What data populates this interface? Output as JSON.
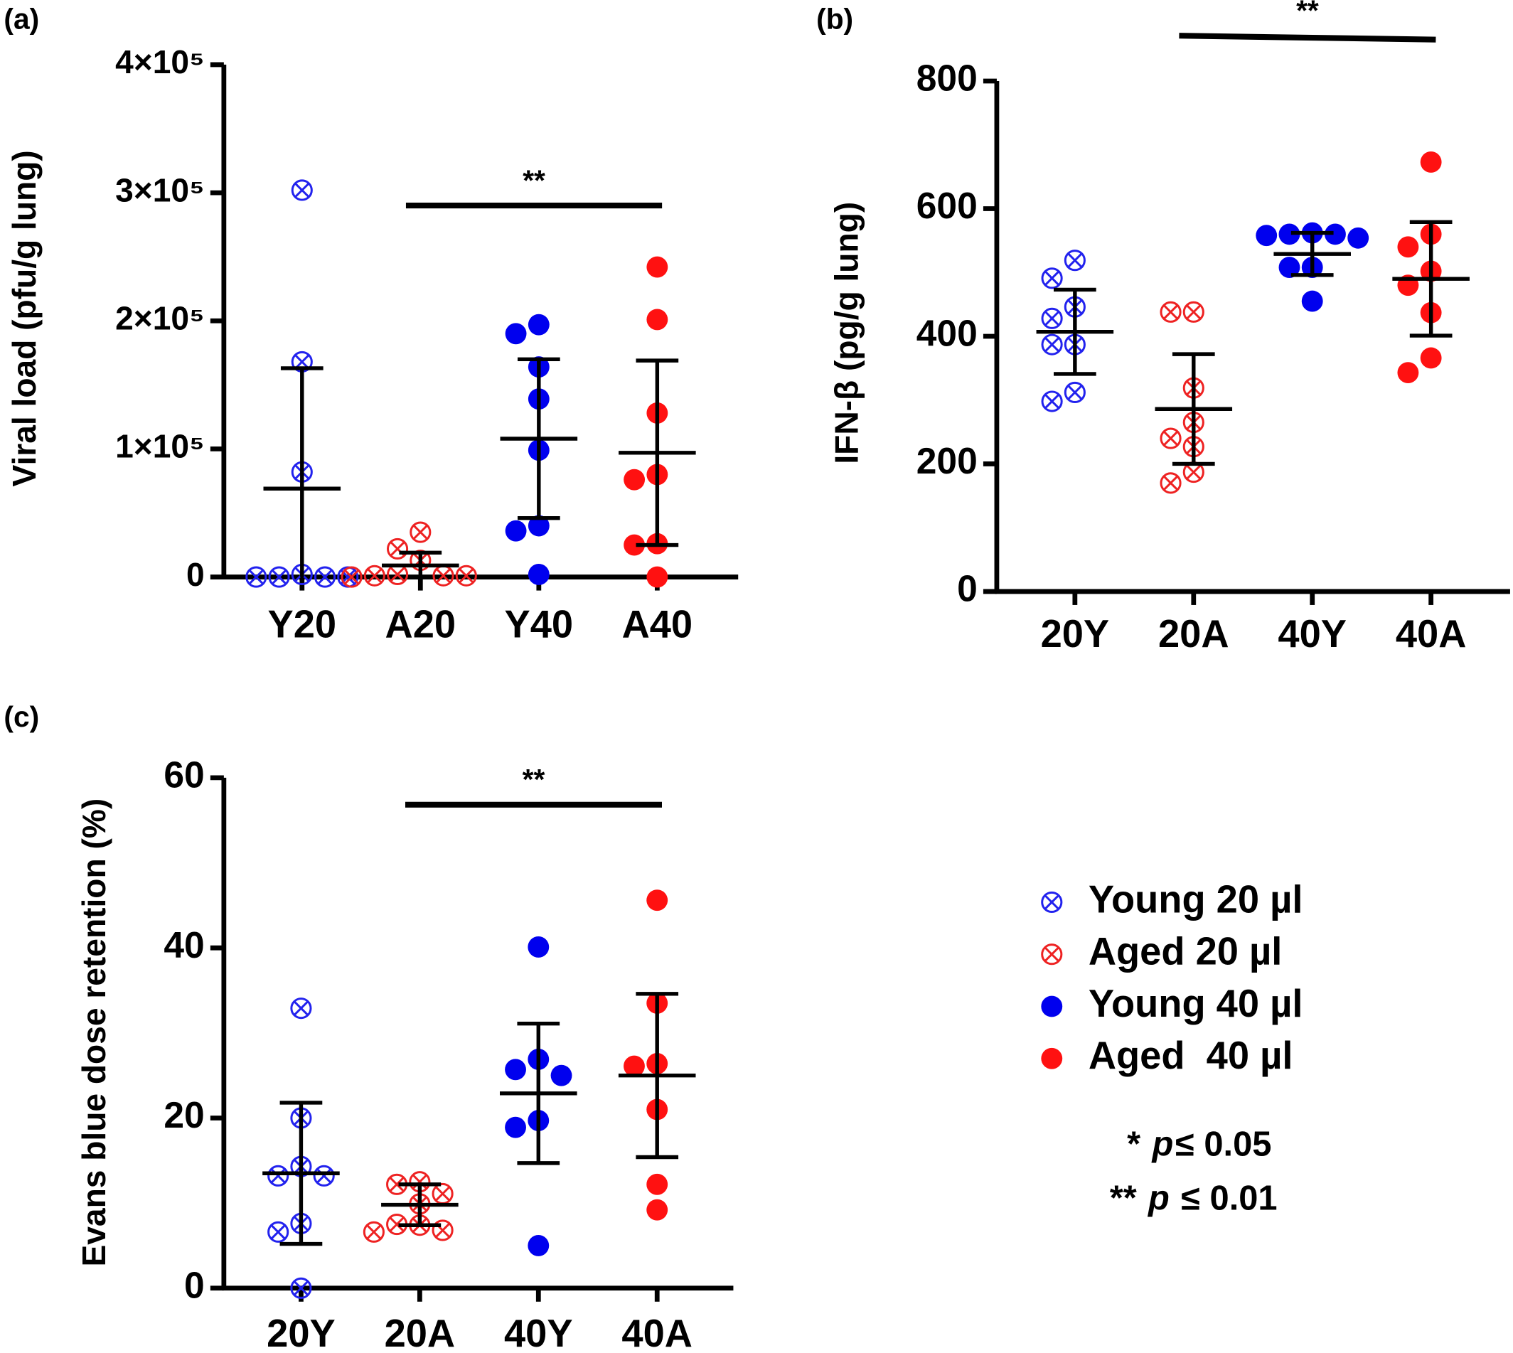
{
  "chart_data": [
    {
      "type": "dot",
      "panel_label": "(a)",
      "ylabel": "Viral load (pfu/g lung)",
      "categories": [
        "Y20",
        "A20",
        "Y40",
        "A40"
      ],
      "ylim": [
        0,
        400000
      ],
      "yticks": [
        0,
        {
          "value": 100000,
          "label": "1×10⁵"
        },
        {
          "value": 200000,
          "label": "2×10⁵"
        },
        {
          "value": 300000,
          "label": "3×10⁵"
        },
        {
          "value": 400000,
          "label": "4×10⁵"
        }
      ],
      "groups": [
        {
          "color": "#2222ee",
          "marker": "cross",
          "points": [
            302000,
            168000,
            82000,
            2000,
            0,
            0,
            0,
            0
          ],
          "mean": 69000,
          "sd": 94000
        },
        {
          "color": "#ee2222",
          "marker": "cross",
          "points": [
            35000,
            22000,
            13000,
            2000,
            1000,
            1000,
            1000,
            0
          ],
          "mean": 9000,
          "sd": 10000
        },
        {
          "color": "#0000ee",
          "marker": "filled",
          "points": [
            197000,
            190000,
            164000,
            139000,
            99000,
            40000,
            36000,
            2000
          ],
          "mean": 108000,
          "sd": 62000
        },
        {
          "color": "#ff1111",
          "marker": "filled",
          "points": [
            242000,
            201000,
            128000,
            80000,
            76000,
            26000,
            25000,
            0
          ],
          "mean": 97000,
          "sd": 72000
        }
      ],
      "significance": {
        "label": "**",
        "between": [
          "A20",
          "A40"
        ]
      }
    },
    {
      "type": "dot",
      "panel_label": "(b)",
      "ylabel": "IFN-β (pg/g lung)",
      "categories": [
        "20Y",
        "20A",
        "40Y",
        "40A"
      ],
      "ylim": [
        0,
        800
      ],
      "yticks": [
        0,
        200,
        400,
        600,
        800
      ],
      "groups": [
        {
          "color": "#2222ee",
          "marker": "cross",
          "points": [
            519,
            491,
            446,
            428,
            387,
            387,
            312,
            298
          ],
          "mean": 407,
          "sd": 66
        },
        {
          "color": "#ee2222",
          "marker": "cross",
          "points": [
            438,
            438,
            319,
            265,
            240,
            227,
            187,
            170
          ],
          "mean": 286,
          "sd": 86
        },
        {
          "color": "#0000ee",
          "marker": "filled",
          "points": [
            562,
            560,
            560,
            558,
            554,
            508,
            508,
            455
          ],
          "mean": 529,
          "sd": 33
        },
        {
          "color": "#ff1111",
          "marker": "filled",
          "points": [
            673,
            560,
            540,
            502,
            480,
            437,
            366,
            343
          ],
          "mean": 490,
          "sd": 89
        }
      ],
      "significance": {
        "label": "**",
        "between": [
          "20A",
          "40A"
        ]
      }
    },
    {
      "type": "dot",
      "panel_label": "(c)",
      "ylabel": "Evans blue dose retention (%)",
      "categories": [
        "20Y",
        "20A",
        "40Y",
        "40A"
      ],
      "ylim": [
        0,
        60
      ],
      "yticks": [
        0,
        20,
        40,
        60
      ],
      "groups": [
        {
          "color": "#2222ee",
          "marker": "cross",
          "points": [
            32.9,
            20.0,
            14.3,
            13.2,
            13.2,
            7.6,
            6.6,
            0
          ],
          "mean": 13.5,
          "sd": 8.3
        },
        {
          "color": "#ee2222",
          "marker": "cross",
          "points": [
            12.5,
            12.2,
            11.1,
            9.9,
            7.5,
            7.4,
            6.8,
            6.6
          ],
          "mean": 9.8,
          "sd": 2.4
        },
        {
          "color": "#0000ee",
          "marker": "filled",
          "points": [
            40.1,
            26.9,
            25.7,
            25.0,
            19.7,
            18.9,
            5.0
          ],
          "mean": 22.9,
          "sd": 8.2
        },
        {
          "color": "#ff1111",
          "marker": "filled",
          "points": [
            45.6,
            33.5,
            26.4,
            26.1,
            21.0,
            12.2,
            9.2
          ],
          "mean": 25.0,
          "sd": 9.6
        }
      ],
      "significance": {
        "label": "**",
        "between": [
          "20A",
          "40A"
        ]
      }
    }
  ],
  "legend": [
    {
      "label": "Young 20 µl",
      "color": "#2222ee",
      "marker": "cross"
    },
    {
      "label": "Aged 20 µl",
      "color": "#ee2222",
      "marker": "cross"
    },
    {
      "label": "Young 40 µl",
      "color": "#0000ee",
      "marker": "filled"
    },
    {
      "label": "Aged  40 µl",
      "color": "#ff1111",
      "marker": "filled"
    }
  ],
  "notes": [
    {
      "stars": "*",
      "italic": "p",
      "rest": "≤ 0.05"
    },
    {
      "stars": "**",
      "italic": "p",
      "rest": "≤ 0.01"
    }
  ]
}
